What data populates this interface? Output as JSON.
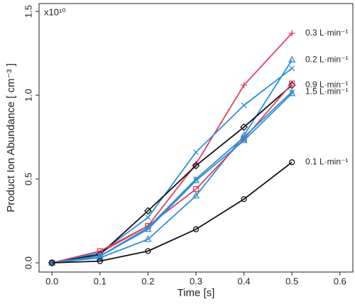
{
  "chart_data": {
    "type": "line",
    "y_label": "Product Ion Abundance [ cm⁻³ ]",
    "x_label": "Time [s]",
    "y_multiplier": "x10¹⁰",
    "x": [
      0,
      0.1,
      0.2,
      0.3,
      0.4,
      0.5
    ],
    "xlim": [
      -0.027,
      0.627
    ],
    "ylim": [
      -0.055,
      1.547
    ],
    "xticks": [
      {
        "value": 0,
        "label": "0.0"
      },
      0.1,
      0.2,
      0.3,
      0.4,
      0.5,
      0.6
    ],
    "yticks": [
      {
        "value": 0,
        "label": "0.0"
      },
      {
        "value": 0.5,
        "label": "0.5"
      },
      {
        "value": 1,
        "label": "1.0"
      },
      {
        "value": 1.5,
        "label": "1.5"
      }
    ],
    "series": [
      {
        "name": "0.3 L·min⁻¹",
        "color": "#e0405e",
        "marker": "plus",
        "values": [
          0,
          0.06,
          0.22,
          0.59,
          1.06,
          1.37
        ]
      },
      {
        "name": "0.2 L·min⁻¹",
        "color": "#2e8fd6",
        "marker": "triangle",
        "values": [
          0,
          0.03,
          0.14,
          0.4,
          0.76,
          1.21
        ]
      },
      {
        "color": "#2e8fd6",
        "marker": "x",
        "values": [
          0,
          0.06,
          0.27,
          0.66,
          0.94,
          1.16
        ]
      },
      {
        "name": "0.9 L·min⁻¹",
        "color": "#111111",
        "marker": "diamond",
        "values": [
          0,
          0.05,
          0.31,
          0.58,
          0.81,
          1.06
        ]
      },
      {
        "color": "#e0405e",
        "marker": "square",
        "values": [
          0,
          0.07,
          0.22,
          0.44,
          0.74,
          1.07
        ]
      },
      {
        "name": "1.5 L·min⁻¹",
        "color": "#2e8fd6",
        "marker": "star",
        "values": [
          0,
          0.04,
          0.21,
          0.5,
          0.75,
          1.02
        ]
      },
      {
        "color": "#2e8fd6",
        "marker": "triangle",
        "values": [
          0,
          0.04,
          0.2,
          0.49,
          0.73,
          1.01
        ]
      },
      {
        "name": "0.1 L·min⁻¹",
        "color": "#111111",
        "marker": "circle",
        "values": [
          0,
          0.01,
          0.07,
          0.2,
          0.38,
          0.6
        ]
      }
    ]
  }
}
